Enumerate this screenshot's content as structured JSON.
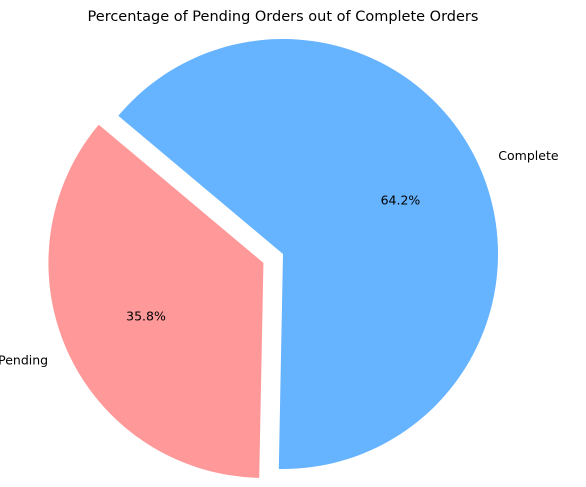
{
  "chart_data": {
    "type": "pie",
    "title": "Percentage of Pending Orders out of Complete Orders",
    "labels": [
      "Pending",
      "Complete"
    ],
    "values": [
      35.8,
      64.2
    ],
    "percent_labels": [
      "35.8%",
      "64.2%"
    ],
    "colors": [
      "#ff9999",
      "#66b3ff"
    ],
    "exploded": [
      "Pending"
    ],
    "start_angle_deg": 140,
    "legend": "none"
  }
}
